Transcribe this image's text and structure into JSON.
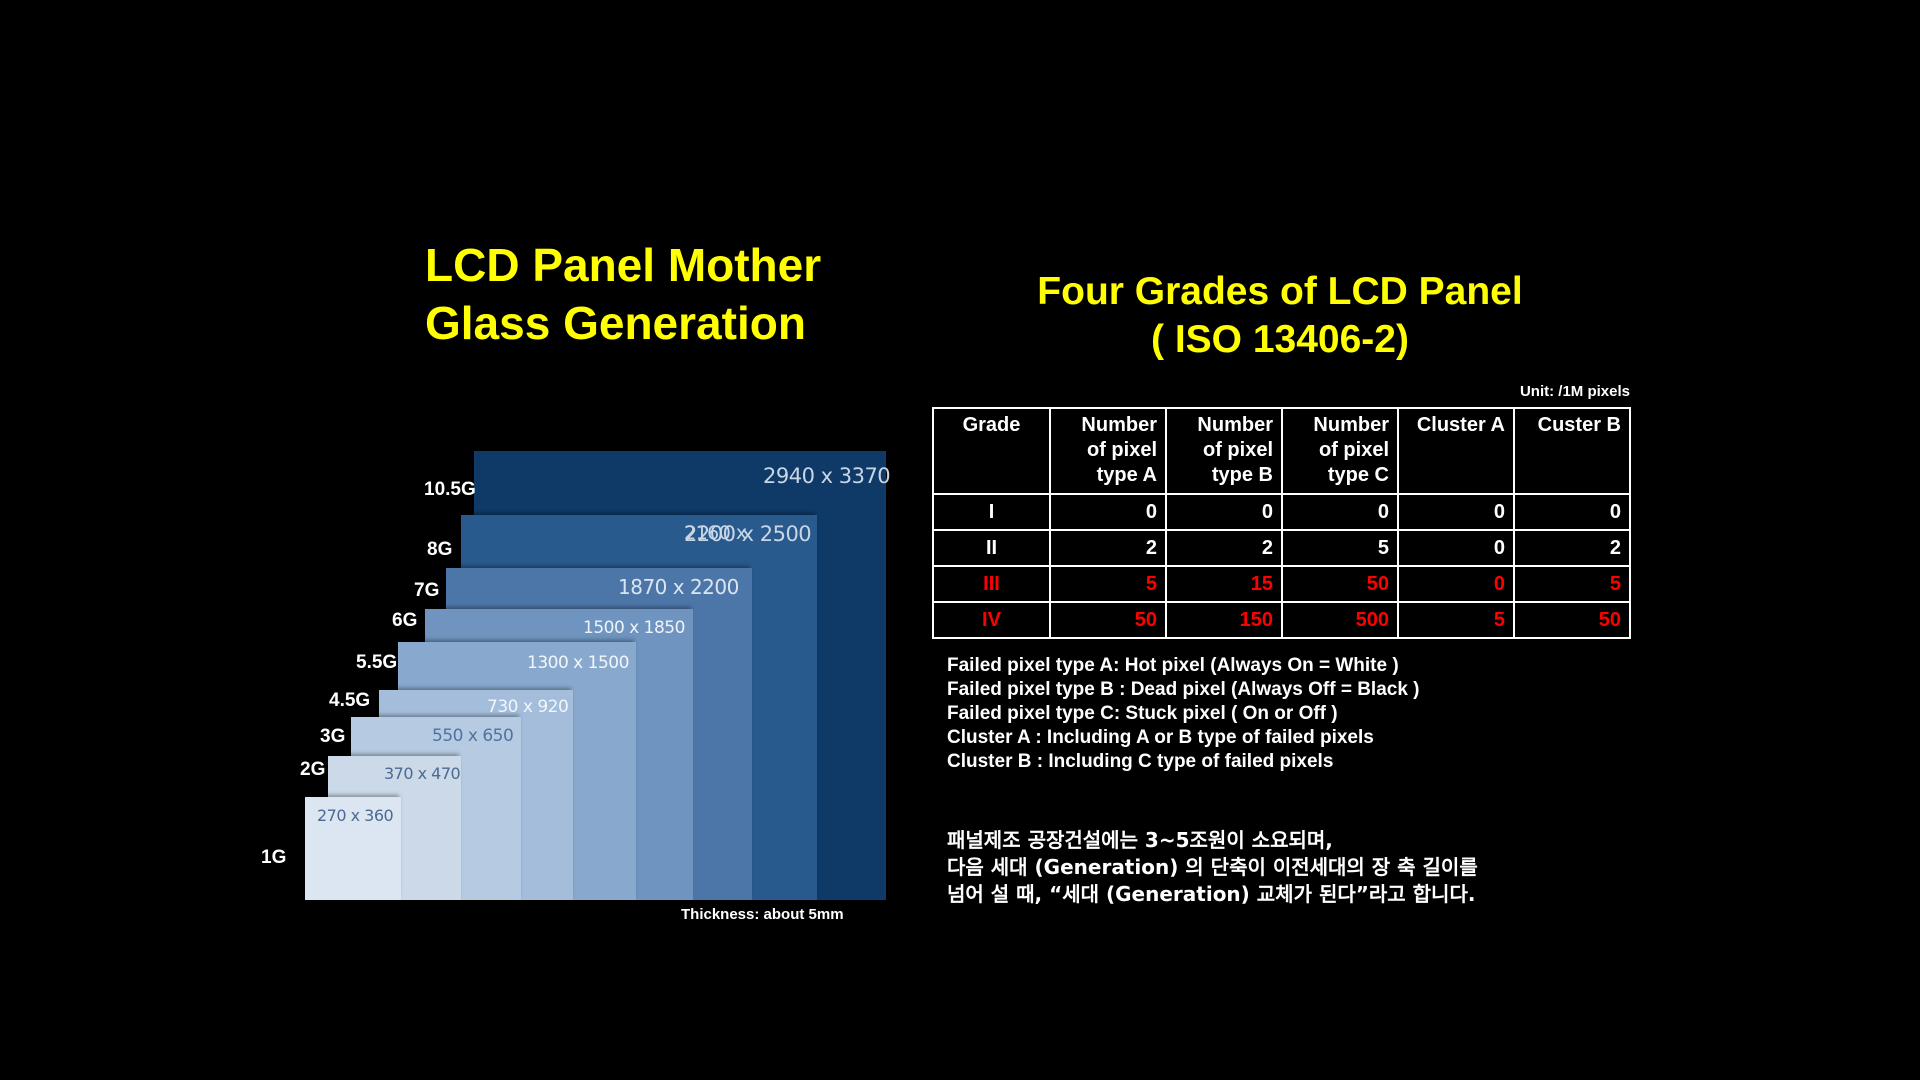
{
  "left_title": [
    "LCD Panel Mother",
    "Glass Generation"
  ],
  "right_title": [
    "Four Grades of LCD Panel",
    "( ISO 13406-2)"
  ],
  "generations": [
    {
      "gen": "1G",
      "size": "270 x 360",
      "color": "#dce6f3"
    },
    {
      "gen": "2G",
      "size": "370 x 470",
      "color": "#cbd9e8"
    },
    {
      "gen": "3G",
      "size": "550 x 650",
      "color": "#b6cbe2"
    },
    {
      "gen": "4.5G",
      "size": "730 x 920",
      "color": "#a3bddb"
    },
    {
      "gen": "5.5G",
      "size": "1300 x 1500",
      "color": "#88a9cd"
    },
    {
      "gen": "6G",
      "size": "1500 x 1850",
      "color": "#6e94bf"
    },
    {
      "gen": "7G",
      "size": "1870 x 2200",
      "color": "#4d76a8"
    },
    {
      "gen": "8G",
      "size": "2200 x 2500",
      "overlap_label": "2160 x",
      "color": "#285a8e"
    },
    {
      "gen": "10.5G",
      "size": "2940 x 3370",
      "color": "#0f3a68"
    }
  ],
  "thickness": "Thickness:  about 5mm",
  "unit": "Unit: /1M pixels",
  "table": {
    "headers": [
      "Grade",
      "Number of pixel type A",
      "Number of pixel type B",
      "Number of pixel type C",
      "Cluster A",
      "Custer B"
    ],
    "rows": [
      {
        "cells": [
          "I",
          "0",
          "0",
          "0",
          "0",
          "0"
        ],
        "highlight": false
      },
      {
        "cells": [
          "II",
          "2",
          "2",
          "5",
          "0",
          "2"
        ],
        "highlight": false
      },
      {
        "cells": [
          "III",
          "5",
          "15",
          "50",
          "0",
          "5"
        ],
        "highlight": true
      },
      {
        "cells": [
          "IV",
          "50",
          "150",
          "500",
          "5",
          "50"
        ],
        "highlight": true
      }
    ],
    "highlight_color": "#ff0000"
  },
  "definitions": [
    "Failed pixel type A: Hot pixel (Always On = White )",
    "Failed pixel type B : Dead pixel (Always Off = Black )",
    "Failed pixel type C: Stuck pixel ( On or Off )",
    "Cluster A : Including A or B type of failed pixels",
    "Cluster B : Including C type of failed pixels"
  ],
  "korean_text": [
    "패널제조 공장건설에는 3~5조원이 소요되며,",
    "다음 세대 (Generation) 의 단축이 이전세대의 장 축 길이를",
    "넘어 설 때, “세대 (Generation) 교체가 된다”라고 합니다."
  ]
}
